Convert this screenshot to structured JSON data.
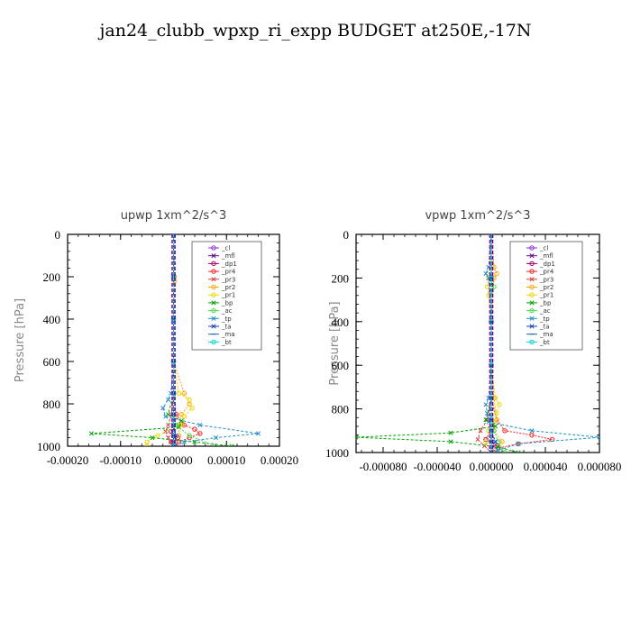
{
  "title": "jan24_clubb_wpxp_ri_expp  BUDGET at250E,-17N",
  "chart_data": [
    {
      "type": "line",
      "title": "upwp   1xm^2/s^3",
      "ylabel": "Pressure [hPa]",
      "xlim": [
        -0.0002,
        0.0002
      ],
      "ylim": [
        1000,
        0
      ],
      "xticks": [
        -0.0002,
        -0.0001,
        0.0,
        0.0001,
        0.0002
      ],
      "xtick_labels": [
        "-0.00020",
        "-0.00010",
        "0.00000",
        "0.00010",
        "0.00020"
      ],
      "yticks": [
        0,
        200,
        400,
        600,
        800,
        1000
      ],
      "ytick_labels": [
        "0",
        "200",
        "400",
        "600",
        "800",
        "1000"
      ],
      "series": [
        {
          "name": "_cl",
          "color": "#8a2be2",
          "marker": "o",
          "y": [
            0,
            200,
            400,
            600,
            750,
            850,
            900,
            950,
            1000
          ],
          "x": [
            0,
            0,
            0,
            0,
            0,
            0,
            0,
            0,
            0
          ]
        },
        {
          "name": "_mfl",
          "color": "#5b0a91",
          "marker": "x",
          "y": [
            0,
            200,
            400,
            600,
            750,
            850,
            900,
            950,
            1000
          ],
          "x": [
            0,
            0,
            0,
            0,
            0,
            0,
            0,
            0,
            0
          ]
        },
        {
          "name": "_dp1",
          "color": "#a0006e",
          "marker": "o",
          "y": [
            0,
            200,
            400,
            600,
            750,
            850,
            900,
            930,
            960,
            980,
            1000
          ],
          "x": [
            0,
            0,
            0,
            0,
            0,
            0,
            0,
            -5e-06,
            8e-06,
            -4e-06,
            3e-06
          ]
        },
        {
          "name": "_pr4",
          "color": "#ff2020",
          "marker": "o",
          "y": [
            0,
            200,
            400,
            600,
            750,
            850,
            900,
            920,
            940,
            960,
            980,
            1000
          ],
          "x": [
            0,
            0,
            0,
            0,
            0,
            5e-06,
            2e-05,
            4e-05,
            5e-05,
            3e-05,
            1e-05,
            0
          ]
        },
        {
          "name": "_pr3",
          "color": "#e04040",
          "marker": "x",
          "y": [
            0,
            200,
            400,
            600,
            750,
            850,
            900,
            930,
            960,
            980,
            1000
          ],
          "x": [
            0,
            0,
            0,
            0,
            0,
            -4e-06,
            -1e-05,
            -1.5e-05,
            -1e-05,
            -5e-06,
            0
          ]
        },
        {
          "name": "_pr2",
          "color": "#ffa500",
          "marker": "o",
          "y": [
            0,
            200,
            220,
            400,
            600,
            750,
            800,
            850,
            900,
            950,
            1000
          ],
          "x": [
            0,
            2e-06,
            2e-06,
            0,
            0,
            2e-05,
            3e-05,
            1.5e-05,
            1e-05,
            1e-05,
            0
          ]
        },
        {
          "name": "_pr1",
          "color": "#e8d800",
          "marker": "o",
          "y": [
            0,
            200,
            400,
            600,
            750,
            780,
            820,
            860,
            900,
            950,
            980,
            1000
          ],
          "x": [
            0,
            0,
            0,
            0,
            1e-05,
            3e-05,
            3.5e-05,
            2e-05,
            1.5e-05,
            -3e-05,
            -5e-05,
            -5e-05
          ]
        },
        {
          "name": "_bp",
          "color": "#00a000",
          "marker": "x",
          "y": [
            0,
            200,
            400,
            600,
            750,
            850,
            880,
            910,
            940,
            960,
            980,
            1000
          ],
          "x": [
            0,
            0,
            0,
            0,
            0,
            -1e-05,
            1.5e-05,
            1e-05,
            -0.000155,
            -4e-05,
            4e-05,
            0.00011
          ]
        },
        {
          "name": "_ac",
          "color": "#40e040",
          "marker": "o",
          "y": [
            0,
            200,
            400,
            600,
            750,
            850,
            900,
            950,
            1000
          ],
          "x": [
            0,
            0,
            0,
            0,
            0,
            0,
            5e-06,
            3e-05,
            8e-05
          ]
        },
        {
          "name": "_tp",
          "color": "#1e90c8",
          "marker": "x",
          "y": [
            0,
            200,
            400,
            600,
            750,
            780,
            820,
            860,
            900,
            940,
            960,
            980,
            1000
          ],
          "x": [
            0,
            0,
            0,
            0,
            -5e-06,
            -1e-05,
            -2e-05,
            -1.5e-05,
            5e-05,
            0.00016,
            8e-05,
            2e-05,
            0
          ]
        },
        {
          "name": "_ta",
          "color": "#1040c0",
          "marker": "x",
          "y": [
            0,
            200,
            400,
            600,
            750,
            850,
            900,
            950,
            1000
          ],
          "x": [
            0,
            0,
            0,
            0,
            0,
            0,
            0,
            4e-06,
            0
          ]
        },
        {
          "name": "_ma",
          "color": "#2060a0",
          "marker": "-",
          "y": [
            0,
            200,
            400,
            600,
            750,
            850,
            900,
            950,
            1000
          ],
          "x": [
            0,
            0,
            0,
            0,
            0,
            0,
            0,
            0,
            0
          ]
        },
        {
          "name": "_bt",
          "color": "#00d8d8",
          "marker": "o",
          "y": [
            0,
            200,
            400,
            600,
            750,
            850,
            900,
            950,
            1000
          ],
          "x": [
            0,
            0,
            0,
            0,
            0,
            0,
            0,
            0,
            0
          ]
        }
      ]
    },
    {
      "type": "line",
      "title": "vpwp   1xm^2/s^3",
      "ylabel": "Pressure [hPa]",
      "xlim": [
        -0.0001,
        8e-05
      ],
      "ylim": [
        1000,
        0
      ],
      "xticks": [
        -8e-05,
        -4e-05,
        0.0,
        4e-05,
        8e-05
      ],
      "xtick_labels": [
        "-0.000080",
        "-0.000040",
        "0.000000",
        "0.000040",
        "0.000080"
      ],
      "yticks": [
        0,
        200,
        400,
        600,
        800,
        1000
      ],
      "ytick_labels": [
        "0",
        "200",
        "400",
        "600",
        "800",
        "1000"
      ],
      "series": [
        {
          "name": "_cl",
          "color": "#8a2be2",
          "marker": "o",
          "y": [
            0,
            200,
            400,
            600,
            750,
            850,
            900,
            950,
            1000
          ],
          "x": [
            0,
            0,
            0,
            0,
            0,
            0,
            0,
            0,
            0
          ]
        },
        {
          "name": "_mfl",
          "color": "#5b0a91",
          "marker": "x",
          "y": [
            0,
            200,
            400,
            600,
            750,
            850,
            900,
            950,
            1000
          ],
          "x": [
            0,
            0,
            0,
            0,
            0,
            0,
            0,
            0,
            0
          ]
        },
        {
          "name": "_dp1",
          "color": "#a0006e",
          "marker": "o",
          "y": [
            0,
            200,
            400,
            600,
            750,
            850,
            900,
            940,
            970,
            1000
          ],
          "x": [
            0,
            0,
            0,
            0,
            0,
            0,
            0,
            -4e-06,
            4e-06,
            0
          ]
        },
        {
          "name": "_pr4",
          "color": "#ff2020",
          "marker": "o",
          "y": [
            0,
            200,
            400,
            600,
            750,
            850,
            900,
            920,
            940,
            960,
            980,
            1000
          ],
          "x": [
            0,
            0,
            0,
            0,
            0,
            4e-06,
            1e-05,
            3e-05,
            4.5e-05,
            2e-05,
            5e-06,
            0
          ]
        },
        {
          "name": "_pr3",
          "color": "#e04040",
          "marker": "x",
          "y": [
            0,
            200,
            400,
            600,
            750,
            850,
            900,
            940,
            970,
            1000
          ],
          "x": [
            0,
            0,
            0,
            0,
            0,
            -3e-06,
            -8e-06,
            -1e-05,
            -5e-06,
            0
          ]
        },
        {
          "name": "_pr2",
          "color": "#ffa500",
          "marker": "o",
          "y": [
            0,
            150,
            180,
            200,
            400,
            600,
            750,
            850,
            900,
            950,
            1000
          ],
          "x": [
            0,
            2e-06,
            4e-06,
            2e-06,
            0,
            0,
            2e-06,
            4e-06,
            2e-06,
            8e-06,
            0
          ]
        },
        {
          "name": "_pr1",
          "color": "#e8d800",
          "marker": "o",
          "y": [
            0,
            200,
            240,
            280,
            400,
            600,
            750,
            780,
            820,
            860,
            900,
            950,
            1000
          ],
          "x": [
            0,
            -2e-06,
            -3e-06,
            -2e-06,
            0,
            0,
            3e-06,
            6e-06,
            4e-06,
            2e-06,
            -2e-06,
            -4e-06,
            0
          ]
        },
        {
          "name": "_bp",
          "color": "#00a000",
          "marker": "x",
          "y": [
            0,
            200,
            400,
            600,
            750,
            850,
            880,
            910,
            930,
            950,
            975,
            1000
          ],
          "x": [
            0,
            0,
            0,
            0,
            0,
            -4e-06,
            3e-06,
            -3e-05,
            -0.0001,
            -3e-05,
            5e-06,
            2e-05
          ]
        },
        {
          "name": "_ac",
          "color": "#40e040",
          "marker": "o",
          "y": [
            0,
            220,
            240,
            260,
            400,
            600,
            750,
            850,
            900,
            950,
            1000
          ],
          "x": [
            0,
            0,
            2e-06,
            0,
            0,
            0,
            0,
            0,
            2e-06,
            5e-06,
            1e-05
          ]
        },
        {
          "name": "_tp",
          "color": "#1e90c8",
          "marker": "x",
          "y": [
            0,
            150,
            180,
            200,
            400,
            600,
            750,
            780,
            820,
            860,
            900,
            930,
            960,
            990,
            1000
          ],
          "x": [
            0,
            -2e-06,
            -4e-06,
            -2e-06,
            0,
            0,
            -2e-06,
            -4e-06,
            -3e-06,
            -2e-06,
            3e-05,
            8e-05,
            2e-05,
            5e-06,
            0
          ]
        },
        {
          "name": "_ta",
          "color": "#1040c0",
          "marker": "x",
          "y": [
            0,
            200,
            400,
            600,
            750,
            850,
            900,
            950,
            1000
          ],
          "x": [
            0,
            0,
            0,
            0,
            0,
            0,
            0,
            3e-06,
            0
          ]
        },
        {
          "name": "_ma",
          "color": "#2060a0",
          "marker": "-",
          "y": [
            0,
            200,
            400,
            600,
            750,
            850,
            900,
            950,
            1000
          ],
          "x": [
            0,
            0,
            0,
            0,
            0,
            0,
            0,
            0,
            0
          ]
        },
        {
          "name": "_bt",
          "color": "#00d8d8",
          "marker": "o",
          "y": [
            0,
            200,
            400,
            600,
            750,
            850,
            900,
            950,
            1000
          ],
          "x": [
            0,
            0,
            0,
            0,
            0,
            0,
            0,
            0,
            0
          ]
        }
      ]
    }
  ]
}
